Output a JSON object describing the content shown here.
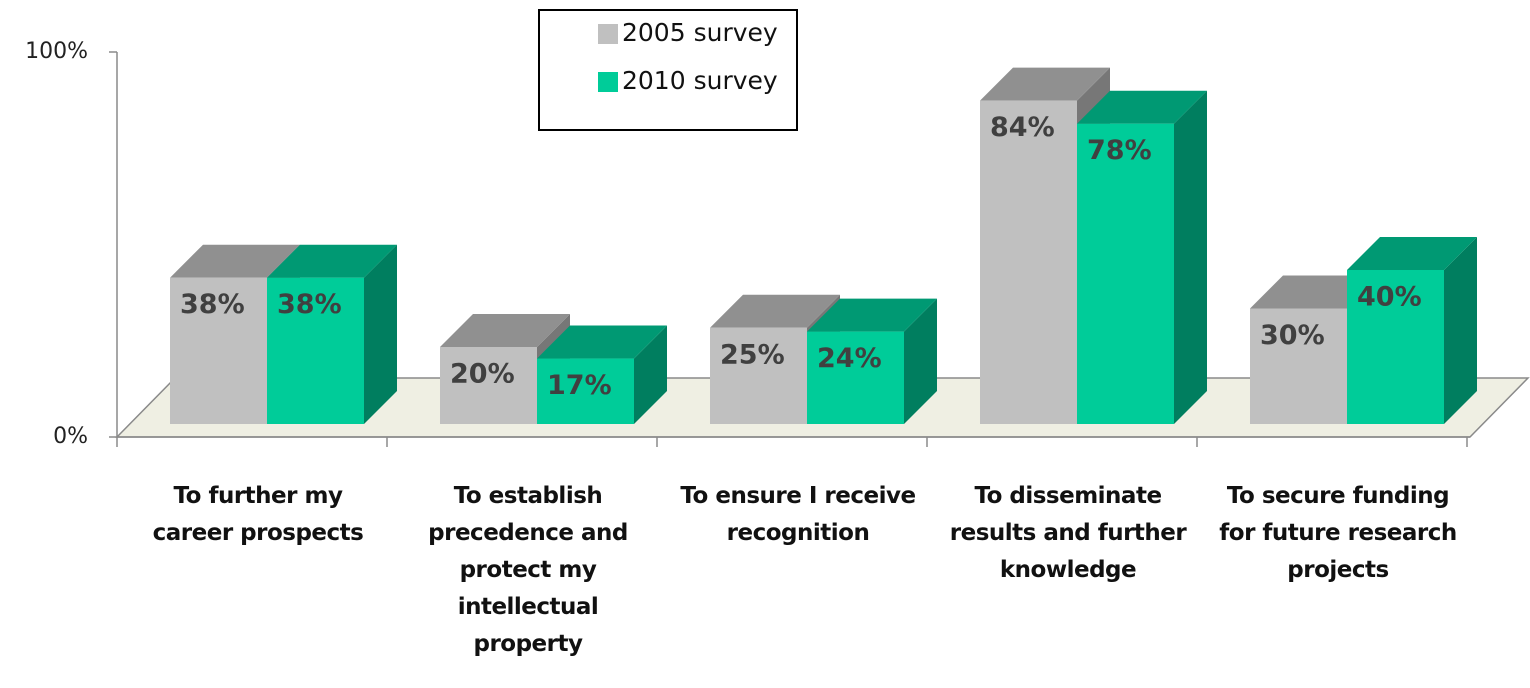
{
  "chart_data": {
    "type": "bar3d",
    "categories": [
      "To further my career prospects",
      "To establish precedence and protect my intellectual property",
      "To ensure I receive recognition",
      "To disseminate results and further knowledge",
      "To secure funding for future research projects"
    ],
    "series": [
      {
        "name": "2005 survey",
        "color": "#c0c0c0",
        "values": [
          38,
          20,
          25,
          84,
          30
        ],
        "value_labels": [
          "38%",
          "20%",
          "25%",
          "84%",
          "30%"
        ]
      },
      {
        "name": "2010 survey",
        "color": "#00cc99",
        "values": [
          38,
          17,
          24,
          78,
          40
        ],
        "value_labels": [
          "38%",
          "17%",
          "24%",
          "78%",
          "40%"
        ]
      }
    ],
    "ylim": [
      0,
      100
    ],
    "yticks": [
      {
        "value": 0,
        "label": "0%"
      },
      {
        "value": 100,
        "label": "100%"
      }
    ],
    "legend": "top"
  }
}
